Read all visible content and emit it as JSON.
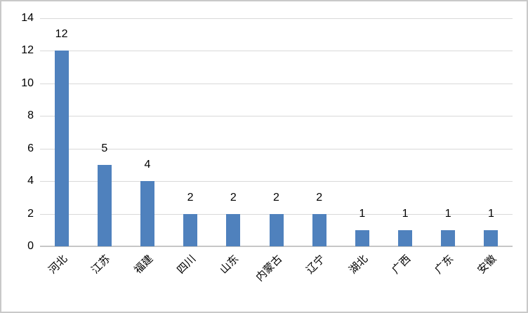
{
  "chart_data": {
    "type": "bar",
    "categories": [
      "河北",
      "江苏",
      "福建",
      "四川",
      "山东",
      "内蒙古",
      "辽宁",
      "湖北",
      "广西",
      "广东",
      "安徽"
    ],
    "values": [
      12,
      5,
      4,
      2,
      2,
      2,
      2,
      1,
      1,
      1,
      1
    ],
    "title": "",
    "xlabel": "",
    "ylabel": "",
    "ylim": [
      0,
      14
    ],
    "yticks": [
      0,
      2,
      4,
      6,
      8,
      10,
      12,
      14
    ],
    "grid": true,
    "legend": "none",
    "data_labels": true,
    "x_label_rotation_deg": 45
  },
  "colors": {
    "bar_fill": "#4f81bd",
    "gridline": "#d9d9d9",
    "axis_baseline": "#c6c6c6",
    "text": "#000000",
    "frame_border": "#c9c9c9",
    "background": "#ffffff"
  }
}
